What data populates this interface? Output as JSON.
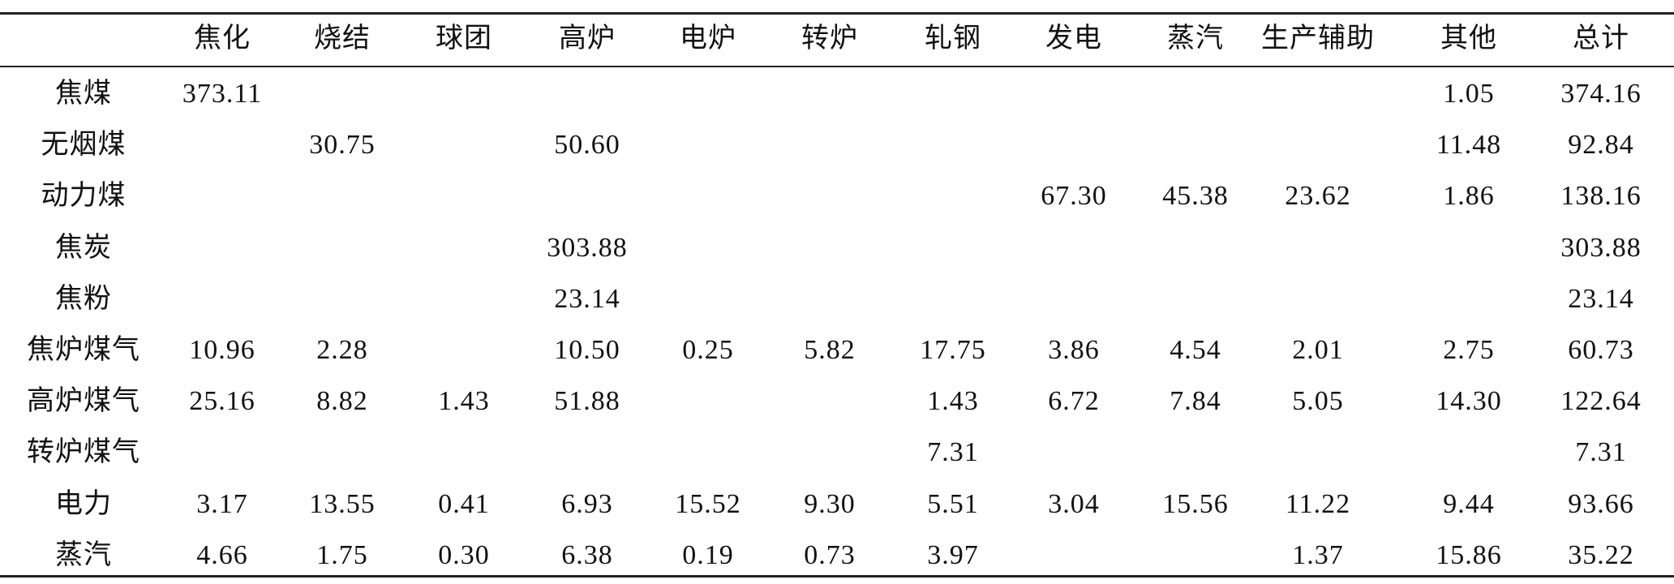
{
  "table": {
    "header": [
      null,
      "焦化",
      "烧结",
      "球团",
      "高炉",
      "电炉",
      "转炉",
      "轧钢",
      "发电",
      "蒸汽",
      "生产辅助",
      "其他",
      "总计"
    ],
    "rows": [
      [
        "焦煤",
        "373.11",
        null,
        null,
        null,
        null,
        null,
        null,
        null,
        null,
        null,
        "1.05",
        "374.16"
      ],
      [
        "无烟煤",
        null,
        "30.75",
        null,
        "50.60",
        null,
        null,
        null,
        null,
        null,
        null,
        "11.48",
        "92.84"
      ],
      [
        "动力煤",
        null,
        null,
        null,
        null,
        null,
        null,
        null,
        "67.30",
        "45.38",
        "23.62",
        "1.86",
        "138.16"
      ],
      [
        "焦炭",
        null,
        null,
        null,
        "303.88",
        null,
        null,
        null,
        null,
        null,
        null,
        null,
        "303.88"
      ],
      [
        "焦粉",
        null,
        null,
        null,
        "23.14",
        null,
        null,
        null,
        null,
        null,
        null,
        null,
        "23.14"
      ],
      [
        "焦炉煤气",
        "10.96",
        "2.28",
        null,
        "10.50",
        "0.25",
        "5.82",
        "17.75",
        "3.86",
        "4.54",
        "2.01",
        "2.75",
        "60.73"
      ],
      [
        "高炉煤气",
        "25.16",
        "8.82",
        "1.43",
        "51.88",
        null,
        null,
        "1.43",
        "6.72",
        "7.84",
        "5.05",
        "14.30",
        "122.64"
      ],
      [
        "转炉煤气",
        null,
        null,
        null,
        null,
        null,
        null,
        "7.31",
        null,
        null,
        null,
        null,
        "7.31"
      ],
      [
        "电力",
        "3.17",
        "13.55",
        "0.41",
        "6.93",
        "15.52",
        "9.30",
        "5.51",
        "3.04",
        "15.56",
        "11.22",
        "9.44",
        "93.66"
      ],
      [
        "蒸汽",
        "4.66",
        "1.75",
        "0.30",
        "6.38",
        "0.19",
        "0.73",
        "3.97",
        null,
        null,
        "1.37",
        "15.86",
        "35.22"
      ]
    ]
  }
}
